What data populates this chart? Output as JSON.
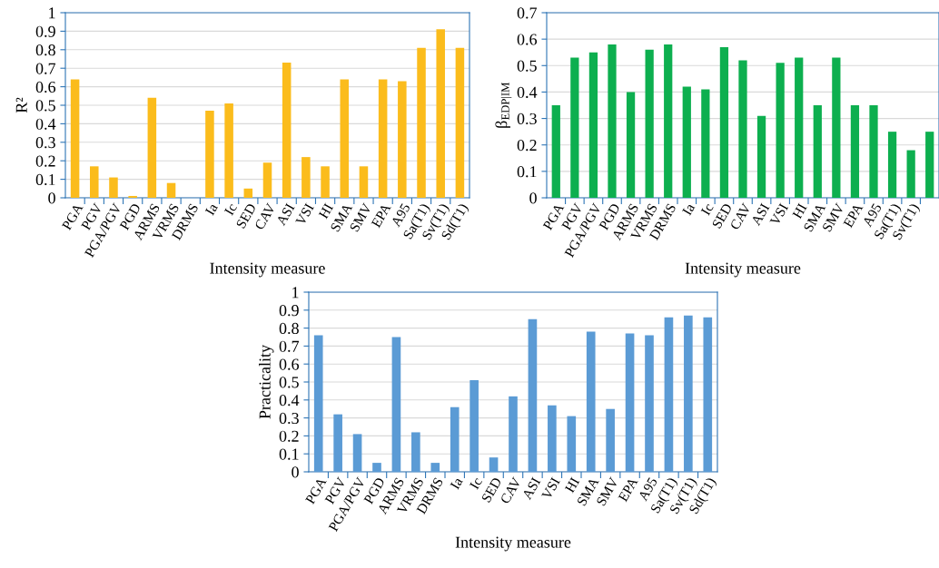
{
  "chart_data": [
    {
      "type": "bar",
      "xlabel": "Intensity measure",
      "ylabel": "R²",
      "categories": [
        "PGA",
        "PGV",
        "PGA/PGV",
        "PGD",
        "ARMS",
        "VRMS",
        "DRMS",
        "Ia",
        "Ic",
        "SED",
        "CAV",
        "ASI",
        "VSI",
        "HI",
        "SMA",
        "SMV",
        "EPA",
        "A95",
        "Sa(T1)",
        "Sv(T1)",
        "Sd(T1)"
      ],
      "values": [
        0.64,
        0.17,
        0.11,
        0.01,
        0.54,
        0.08,
        0,
        0.47,
        0.51,
        0.05,
        0.19,
        0.73,
        0.22,
        0.17,
        0.64,
        0.17,
        0.64,
        0.63,
        0.81,
        0.91,
        0.81
      ],
      "color": "#fbbc1c",
      "ylim": [
        0,
        1
      ],
      "yticks": [
        0,
        0.1,
        0.2,
        0.3,
        0.4,
        0.5,
        0.6,
        0.7,
        0.8,
        0.9,
        1
      ],
      "grid": "y"
    },
    {
      "type": "bar",
      "xlabel": "Intensity measure",
      "ylabel": "β$_{EDP|IM}$",
      "categories": [
        "PGA",
        "PGV",
        "PGA/PGV",
        "PGD",
        "ARMS",
        "VRMS",
        "DRMS",
        "Ia",
        "Ic",
        "SED",
        "CAV",
        "ASI",
        "VSI",
        "HI",
        "SMA",
        "SMV",
        "EPA",
        "A95",
        "Sa(T1)",
        "Sv(T1)",
        null
      ],
      "values": [
        0.35,
        0.53,
        0.55,
        0.58,
        0.4,
        0.56,
        0.58,
        0.42,
        0.41,
        0.57,
        0.52,
        0.31,
        0.51,
        0.53,
        0.35,
        0.53,
        0.35,
        0.35,
        0.25,
        0.18,
        0.25
      ],
      "color": "#0daf4f",
      "ylim": [
        0,
        0.7
      ],
      "yticks": [
        0,
        0.1,
        0.2,
        0.3,
        0.4,
        0.5,
        0.6,
        0.7
      ],
      "grid": "y"
    },
    {
      "type": "bar",
      "xlabel": "Intensity measure",
      "ylabel": "Practicality",
      "categories": [
        "PGA",
        "PGV",
        "PGA/PGV",
        "PGD",
        "ARMS",
        "VRMS",
        "DRMS",
        "Ia",
        "Ic",
        "SED",
        "CAV",
        "ASI",
        "VSI",
        "HI",
        "SMA",
        "SMV",
        "EPA",
        "A95",
        "Sa(T1)",
        "Sv(T1)",
        "Sd(T1)"
      ],
      "values": [
        0.76,
        0.32,
        0.21,
        0.05,
        0.75,
        0.22,
        0.05,
        0.36,
        0.51,
        0.08,
        0.42,
        0.85,
        0.37,
        0.31,
        0.78,
        0.35,
        0.77,
        0.76,
        0.86,
        0.87,
        0.86
      ],
      "color": "#5b9bd5",
      "ylim": [
        0,
        1
      ],
      "yticks": [
        0,
        0.1,
        0.2,
        0.3,
        0.4,
        0.5,
        0.6,
        0.7,
        0.8,
        0.9,
        1
      ],
      "grid": "y"
    }
  ]
}
